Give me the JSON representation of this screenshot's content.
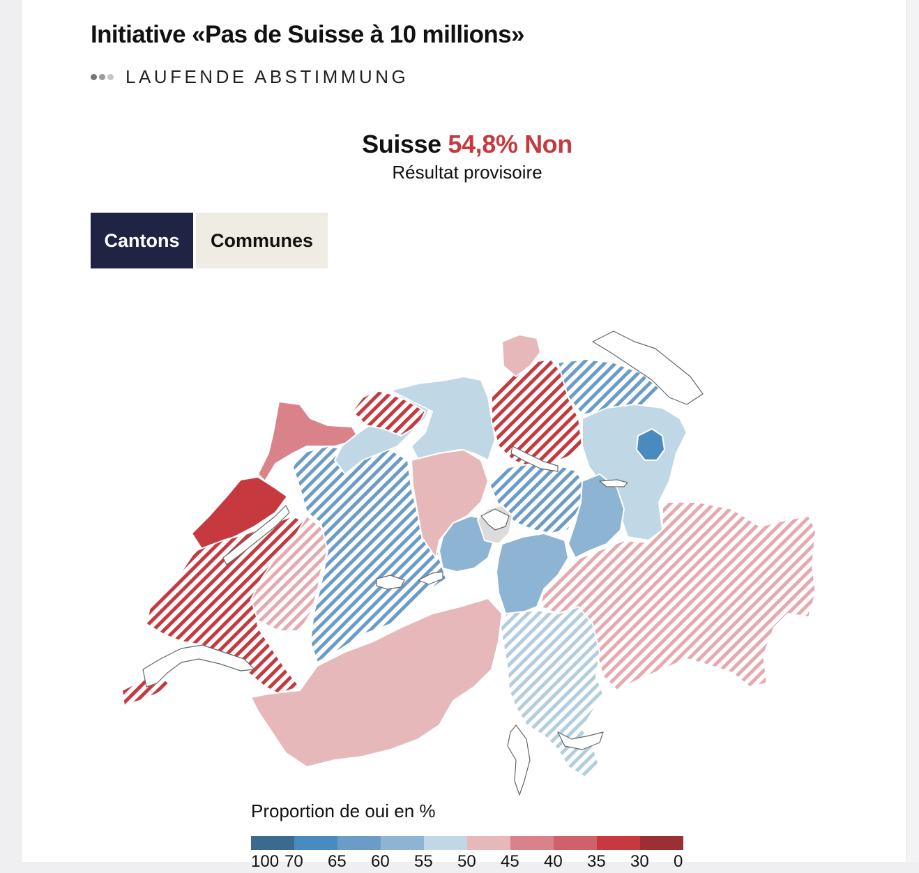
{
  "header": {
    "title": "Initiative «Pas de Suisse à 10 millions»",
    "status": "LAUFENDE ABSTIMMUNG"
  },
  "result": {
    "country": "Suisse",
    "value": "54,8% Non",
    "subtitle": "Résultat provisoire"
  },
  "tabs": {
    "active": "Cantons",
    "inactive": "Communes"
  },
  "colors": {
    "no_dark": "#9a2f34",
    "no_mid": "#c6393e",
    "no_light": "#e6b8ba",
    "yes_light": "#c0d7e6",
    "yes_mid": "#8db5d3",
    "yes_dark": "#4a8bbf",
    "no_data": "#dcdcdc",
    "tab_active_bg": "#1f2444",
    "tab_inactive_bg": "#efede3"
  },
  "map": {
    "regions": [
      {
        "name": "jura",
        "color": "#d98289",
        "pattern": "solid"
      },
      {
        "name": "neuchatel",
        "color": "#c6393e",
        "pattern": "solid"
      },
      {
        "name": "vaud",
        "color": "#c6393e",
        "pattern": "hatch"
      },
      {
        "name": "geneva",
        "color": "#c6393e",
        "pattern": "hatch"
      },
      {
        "name": "fribourg",
        "color": "#e6b8ba",
        "pattern": "hatch"
      },
      {
        "name": "bern",
        "color": "#6b9cc7",
        "pattern": "hatch"
      },
      {
        "name": "valais",
        "color": "#e6b8ba",
        "pattern": "solid"
      },
      {
        "name": "solothurn",
        "color": "#c0d7e6",
        "pattern": "solid"
      },
      {
        "name": "basel",
        "color": "#c6393e",
        "pattern": "hatch"
      },
      {
        "name": "aargau",
        "color": "#c0d7e6",
        "pattern": "solid"
      },
      {
        "name": "lucerne",
        "color": "#e6b8ba",
        "pattern": "solid"
      },
      {
        "name": "zurich",
        "color": "#c6393e",
        "pattern": "hatch"
      },
      {
        "name": "schaffhausen",
        "color": "#e6b8ba",
        "pattern": "solid"
      },
      {
        "name": "thurgau",
        "color": "#6b9cc7",
        "pattern": "hatch"
      },
      {
        "name": "st-gallen",
        "color": "#c0d7e6",
        "pattern": "solid"
      },
      {
        "name": "appenzell",
        "color": "#4a8bbf",
        "pattern": "solid"
      },
      {
        "name": "schwyz-zug",
        "color": "#6b9cc7",
        "pattern": "hatch"
      },
      {
        "name": "glarus",
        "color": "#8db5d3",
        "pattern": "solid"
      },
      {
        "name": "obwalden-nidwalden",
        "color": "#8db5d3",
        "pattern": "solid"
      },
      {
        "name": "lucerne-lake",
        "color": "#dcdcdc",
        "pattern": "solid"
      },
      {
        "name": "uri",
        "color": "#8db5d3",
        "pattern": "solid"
      },
      {
        "name": "graubunden",
        "color": "#e6b8ba",
        "pattern": "hatch"
      },
      {
        "name": "ticino",
        "color": "#c0d7e6",
        "pattern": "hatch"
      }
    ]
  },
  "legend": {
    "title": "Proportion de oui en %",
    "colors": [
      "#3c6a8f",
      "#4a8bbf",
      "#6b9cc7",
      "#8db5d3",
      "#c0d7e6",
      "#e6b8ba",
      "#d98289",
      "#cf6168",
      "#c6393e",
      "#9a2f34"
    ],
    "ticks": [
      "100",
      "70",
      "65",
      "60",
      "55",
      "50",
      "45",
      "40",
      "35",
      "30",
      "0"
    ]
  }
}
